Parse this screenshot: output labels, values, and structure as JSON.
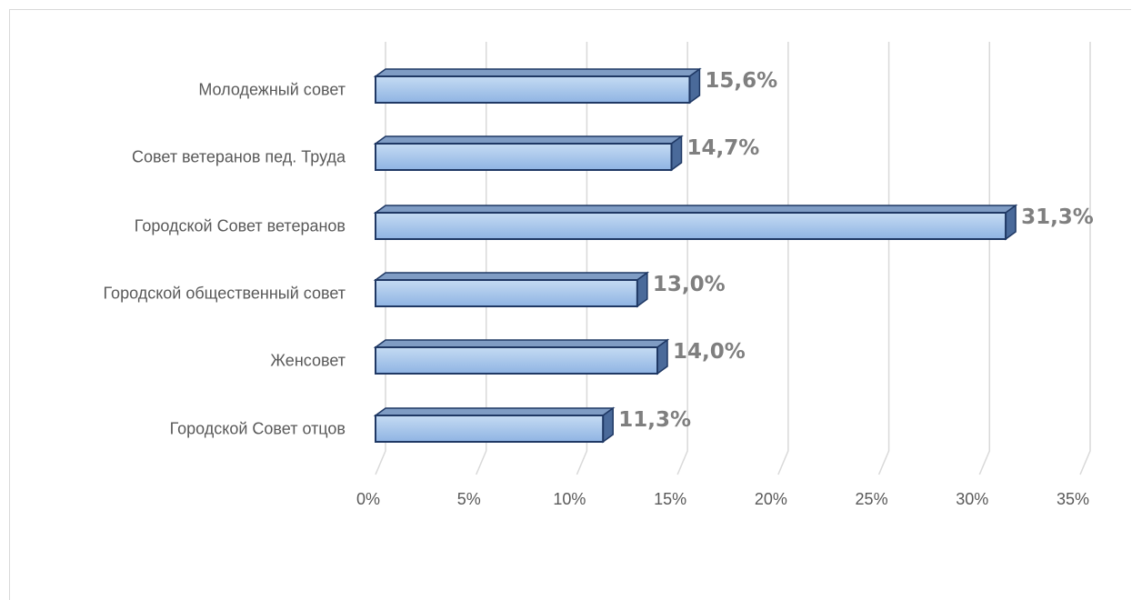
{
  "chart_data": {
    "type": "bar",
    "orientation": "horizontal",
    "style": "3d-clustered-bar",
    "title": "",
    "xlabel": "",
    "ylabel": "",
    "categories": [
      "Молодежный совет",
      "Совет ветеранов пед. Труда",
      "Городской Совет ветеранов",
      "Городской общественный совет",
      "Женсовет",
      "Городской Совет отцов"
    ],
    "values": [
      15.6,
      14.7,
      31.3,
      13.0,
      14.0,
      11.3
    ],
    "data_labels": [
      "15,6%",
      "14,7%",
      "31,3%",
      "13,0%",
      "14,0%",
      "11,3%"
    ],
    "xlim": [
      0,
      35
    ],
    "x_ticks": [
      0,
      5,
      10,
      15,
      20,
      25,
      30,
      35
    ],
    "x_tick_labels": [
      "0%",
      "5%",
      "10%",
      "15%",
      "20%",
      "25%",
      "30%",
      "35%"
    ],
    "grid": true,
    "legend": "none",
    "colors": {
      "bar_fill_top": "#c5dbf3",
      "bar_fill_bottom": "#8fb4e3",
      "bar_outline": "#1f3864",
      "bar_top_face": "#7f9cc4",
      "bar_side_face": "#4a6a9a",
      "gridline": "#d9d9d9",
      "label_text": "#595959",
      "data_label_text": "#7f7f7f"
    }
  }
}
